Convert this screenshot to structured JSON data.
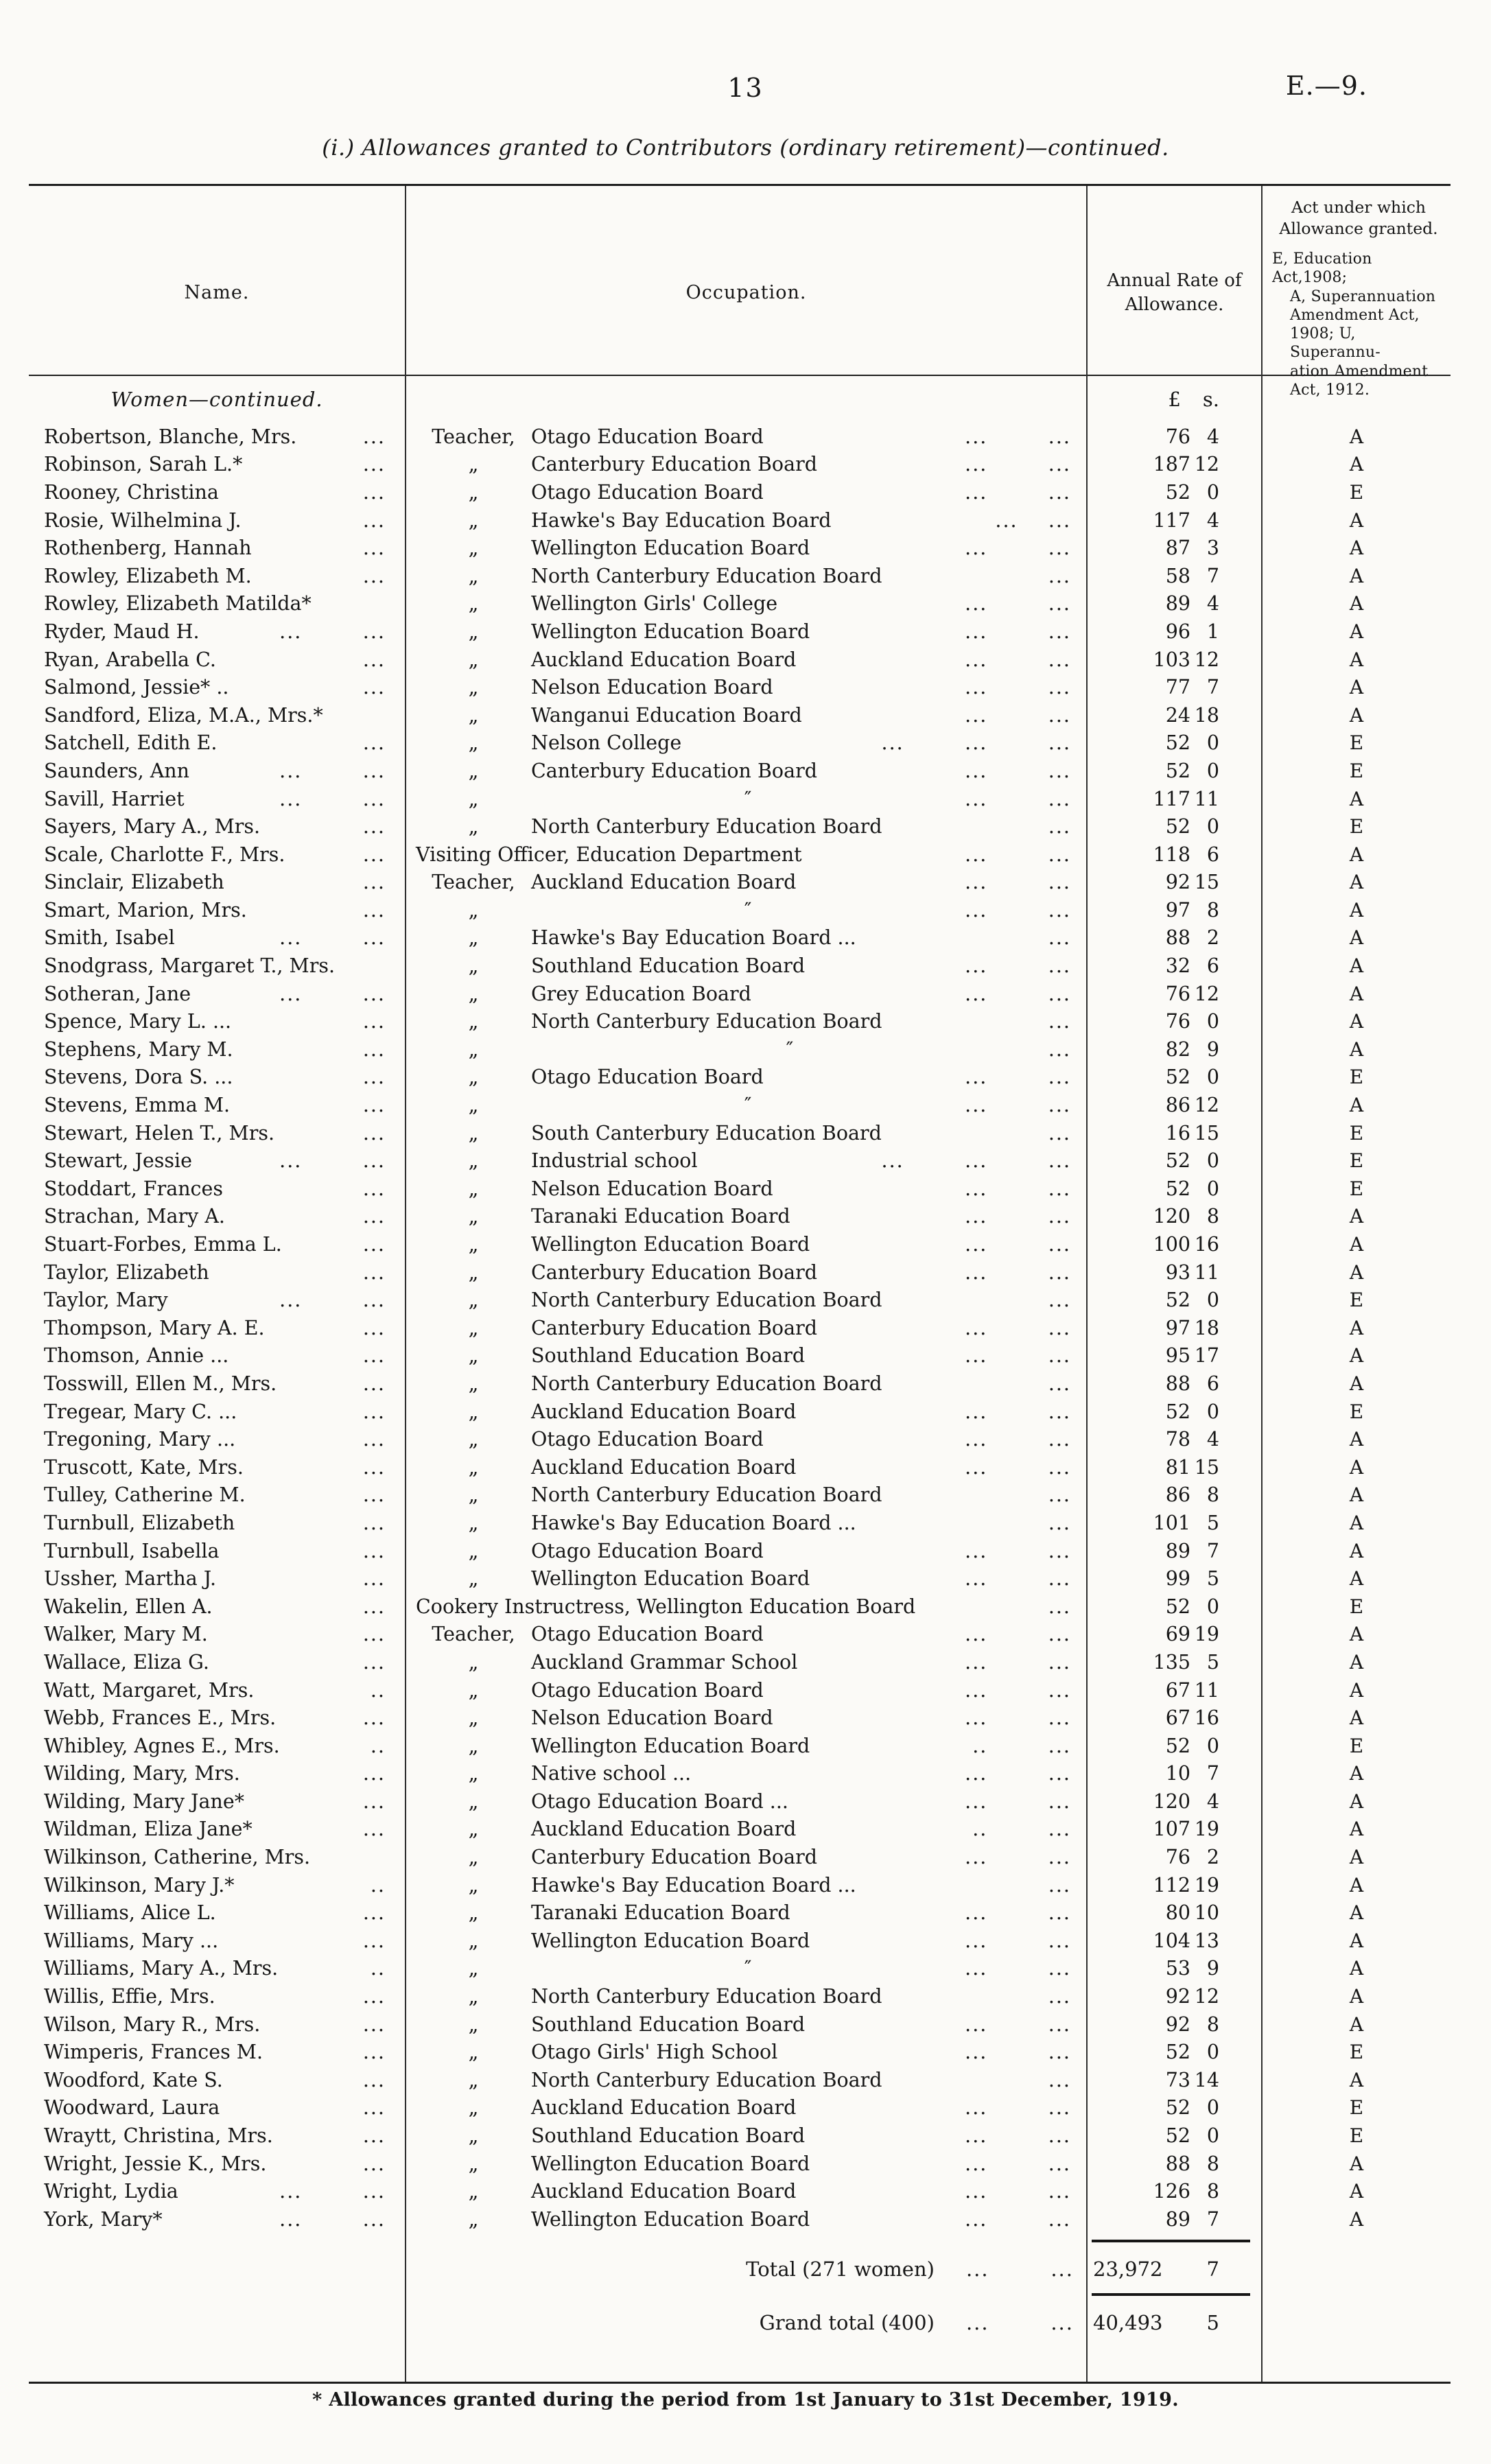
{
  "header": {
    "page_number": "13",
    "doc_ref": "E.—9.",
    "title": "(i.) Allowances granted to Contributors (ordinary retirement)—continued."
  },
  "table": {
    "col_name": "Name.",
    "col_occupation": "Occupation.",
    "col_allowance_lines": [
      "Annual Rate of",
      "Allowance."
    ],
    "col_act_lines": [
      "Act under which",
      "Allowance granted."
    ],
    "col_act_note_lines": [
      "E, Education Act,1908;",
      "A, Superannuation",
      "Amendment Act,",
      "1908; U, Superannu-",
      "ation Amendment",
      "Act, 1912."
    ],
    "section_heading": "Women—continued.",
    "currency_pounds": "£",
    "currency_shillings": "s.",
    "ditto_prefix": "„",
    "ditto_board": "″",
    "rows": [
      {
        "name": "Robertson, Blanche, Mrs.",
        "ndots": "...",
        "pre": "Teacher,",
        "occ": "Otago Education Board",
        "odots": "...        ...",
        "pounds": "76",
        "sh": "4",
        "act": "A"
      },
      {
        "name": "Robinson, Sarah L.*",
        "ndots": "...",
        "pre": "„",
        "occ": "Canterbury Education Board",
        "odots": "...        ...",
        "pounds": "187",
        "sh": "12",
        "act": "A"
      },
      {
        "name": "Rooney, Christina",
        "ndots": "...",
        "pre": "„",
        "occ": "Otago Education Board",
        "odots": "...        ...",
        "pounds": "52",
        "sh": "0",
        "act": "E"
      },
      {
        "name": "Rosie, Wilhelmina J.",
        "ndots": "...",
        "pre": "„",
        "occ": "Hawke's Bay Education Board",
        "odots": "...    ...",
        "pounds": "117",
        "sh": "4",
        "act": "A"
      },
      {
        "name": "Rothenberg, Hannah",
        "ndots": "...",
        "pre": "„",
        "occ": "Wellington Education Board",
        "odots": "...        ...",
        "pounds": "87",
        "sh": "3",
        "act": "A"
      },
      {
        "name": "Rowley, Elizabeth M.",
        "ndots": "...",
        "pre": "„",
        "occ": "North Canterbury Education Board",
        "odots": "...",
        "pounds": "58",
        "sh": "7",
        "act": "A"
      },
      {
        "name": "Rowley, Elizabeth Matilda*",
        "ndots": "",
        "pre": "„",
        "occ": "Wellington Girls' College",
        "odots": "...        ...",
        "pounds": "89",
        "sh": "4",
        "act": "A"
      },
      {
        "name": "Ryder, Maud H.",
        "ndots": "...        ...",
        "pre": "„",
        "occ": "Wellington Education Board",
        "odots": "...        ...",
        "pounds": "96",
        "sh": "1",
        "act": "A"
      },
      {
        "name": "Ryan, Arabella C.",
        "ndots": "...",
        "pre": "„",
        "occ": "Auckland Education Board",
        "odots": "...        ...",
        "pounds": "103",
        "sh": "12",
        "act": "A"
      },
      {
        "name": "Salmond, Jessie* ..",
        "ndots": "...",
        "pre": "„",
        "occ": "Nelson Education Board",
        "odots": "...        ...",
        "pounds": "77",
        "sh": "7",
        "act": "A"
      },
      {
        "name": "Sandford, Eliza, M.A., Mrs.*",
        "ndots": "",
        "pre": "„",
        "occ": "Wanganui Education Board",
        "odots": "...        ...",
        "pounds": "24",
        "sh": "18",
        "act": "A"
      },
      {
        "name": "Satchell, Edith E.",
        "ndots": "...",
        "pre": "„",
        "occ": "Nelson College",
        "odots": "...        ...        ...",
        "pounds": "52",
        "sh": "0",
        "act": "E"
      },
      {
        "name": "Saunders, Ann",
        "ndots": "...        ...",
        "pre": "„",
        "occ": "Canterbury Education Board",
        "odots": "...        ...",
        "pounds": "52",
        "sh": "0",
        "act": "E"
      },
      {
        "name": "Savill, Harriet",
        "ndots": "...        ...",
        "pre": "„",
        "occ": "″",
        "odots": "...        ...",
        "pounds": "117",
        "sh": "11",
        "act": "A"
      },
      {
        "name": "Sayers, Mary A., Mrs.",
        "ndots": "...",
        "pre": "„",
        "occ": "North Canterbury Education Board",
        "odots": "...",
        "pounds": "52",
        "sh": "0",
        "act": "E"
      },
      {
        "name": "Scale, Charlotte F., Mrs.",
        "ndots": "...",
        "pre": "",
        "occ": "Visiting Officer, Education Department",
        "odots": "...        ...",
        "pounds": "118",
        "sh": "6",
        "act": "A"
      },
      {
        "name": "Sinclair, Elizabeth",
        "ndots": "...",
        "pre": "Teacher,",
        "occ": "Auckland Education Board",
        "odots": "...        ...",
        "pounds": "92",
        "sh": "15",
        "act": "A"
      },
      {
        "name": "Smart, Marion, Mrs.",
        "ndots": "...",
        "pre": "„",
        "occ": "″",
        "odots": "...        ...",
        "pounds": "97",
        "sh": "8",
        "act": "A"
      },
      {
        "name": "Smith, Isabel",
        "ndots": "...        ...",
        "pre": "„",
        "occ": "Hawke's Bay Education Board ...",
        "odots": "...",
        "pounds": "88",
        "sh": "2",
        "act": "A"
      },
      {
        "name": "Snodgrass, Margaret T., Mrs.",
        "ndots": "",
        "pre": "„",
        "occ": "Southland Education Board",
        "odots": "...        ...",
        "pounds": "32",
        "sh": "6",
        "act": "A"
      },
      {
        "name": "Sotheran, Jane",
        "ndots": "...        ...",
        "pre": "„",
        "occ": "Grey Education Board",
        "odots": "...        ...",
        "pounds": "76",
        "sh": "12",
        "act": "A"
      },
      {
        "name": "Spence, Mary L. ...",
        "ndots": "...",
        "pre": "„",
        "occ": "North Canterbury Education Board",
        "odots": "...",
        "pounds": "76",
        "sh": "0",
        "act": "A"
      },
      {
        "name": "Stephens, Mary M.",
        "ndots": "...",
        "pre": "„",
        "occ": "″",
        "odots": "...",
        "pounds": "82",
        "sh": "9",
        "act": "A"
      },
      {
        "name": "Stevens, Dora S. ...",
        "ndots": "...",
        "pre": "„",
        "occ": "Otago Education Board",
        "odots": "...        ...",
        "pounds": "52",
        "sh": "0",
        "act": "E"
      },
      {
        "name": "Stevens, Emma M.",
        "ndots": "...",
        "pre": "„",
        "occ": "″",
        "odots": "...        ...",
        "pounds": "86",
        "sh": "12",
        "act": "A"
      },
      {
        "name": "Stewart, Helen T., Mrs.",
        "ndots": "...",
        "pre": "„",
        "occ": "South Canterbury Education Board",
        "odots": "...",
        "pounds": "16",
        "sh": "15",
        "act": "E"
      },
      {
        "name": "Stewart, Jessie",
        "ndots": "...        ...",
        "pre": "„",
        "occ": "Industrial school",
        "odots": "...        ...        ...",
        "pounds": "52",
        "sh": "0",
        "act": "E"
      },
      {
        "name": "Stoddart, Frances",
        "ndots": "...",
        "pre": "„",
        "occ": "Nelson Education Board",
        "odots": "...        ...",
        "pounds": "52",
        "sh": "0",
        "act": "E"
      },
      {
        "name": "Strachan, Mary A.",
        "ndots": "...",
        "pre": "„",
        "occ": "Taranaki Education Board",
        "odots": "...        ...",
        "pounds": "120",
        "sh": "8",
        "act": "A"
      },
      {
        "name": "Stuart-Forbes, Emma L.",
        "ndots": "...",
        "pre": "„",
        "occ": "Wellington Education Board",
        "odots": "...        ...",
        "pounds": "100",
        "sh": "16",
        "act": "A"
      },
      {
        "name": "Taylor, Elizabeth",
        "ndots": "...",
        "pre": "„",
        "occ": "Canterbury Education Board",
        "odots": "...        ...",
        "pounds": "93",
        "sh": "11",
        "act": "A"
      },
      {
        "name": "Taylor, Mary",
        "ndots": "...        ...",
        "pre": "„",
        "occ": "North Canterbury Education Board",
        "odots": "...",
        "pounds": "52",
        "sh": "0",
        "act": "E"
      },
      {
        "name": "Thompson, Mary A. E.",
        "ndots": "...",
        "pre": "„",
        "occ": "Canterbury Education Board",
        "odots": "...        ...",
        "pounds": "97",
        "sh": "18",
        "act": "A"
      },
      {
        "name": "Thomson, Annie ...",
        "ndots": "...",
        "pre": "„",
        "occ": "Southland Education Board",
        "odots": "...        ...",
        "pounds": "95",
        "sh": "17",
        "act": "A"
      },
      {
        "name": "Tosswill, Ellen M., Mrs.",
        "ndots": "...",
        "pre": "„",
        "occ": "North Canterbury Education Board",
        "odots": "...",
        "pounds": "88",
        "sh": "6",
        "act": "A"
      },
      {
        "name": "Tregear, Mary C. ...",
        "ndots": "...",
        "pre": "„",
        "occ": "Auckland Education Board",
        "odots": "...        ...",
        "pounds": "52",
        "sh": "0",
        "act": "E"
      },
      {
        "name": "Tregoning, Mary ...",
        "ndots": "...",
        "pre": "„",
        "occ": "Otago Education Board",
        "odots": "...        ...",
        "pounds": "78",
        "sh": "4",
        "act": "A"
      },
      {
        "name": "Truscott, Kate, Mrs.",
        "ndots": "...",
        "pre": "„",
        "occ": "Auckland Education Board",
        "odots": "...        ...",
        "pounds": "81",
        "sh": "15",
        "act": "A"
      },
      {
        "name": "Tulley, Catherine M.",
        "ndots": "...",
        "pre": "„",
        "occ": "North Canterbury Education Board",
        "odots": "...",
        "pounds": "86",
        "sh": "8",
        "act": "A"
      },
      {
        "name": "Turnbull, Elizabeth",
        "ndots": "...",
        "pre": "„",
        "occ": "Hawke's Bay Education Board ...",
        "odots": "...",
        "pounds": "101",
        "sh": "5",
        "act": "A"
      },
      {
        "name": "Turnbull, Isabella",
        "ndots": "...",
        "pre": "„",
        "occ": "Otago Education Board",
        "odots": "...        ...",
        "pounds": "89",
        "sh": "7",
        "act": "A"
      },
      {
        "name": "Ussher, Martha J.",
        "ndots": "...",
        "pre": "„",
        "occ": "Wellington Education Board",
        "odots": "...        ...",
        "pounds": "99",
        "sh": "5",
        "act": "A"
      },
      {
        "name": "Wakelin, Ellen A.",
        "ndots": "...",
        "pre": "",
        "occ": "Cookery Instructress, Wellington Education Board",
        "odots": "...",
        "pounds": "52",
        "sh": "0",
        "act": "E"
      },
      {
        "name": "Walker, Mary M.",
        "ndots": "...",
        "pre": "Teacher,",
        "occ": "Otago Education Board",
        "odots": "...        ...",
        "pounds": "69",
        "sh": "19",
        "act": "A"
      },
      {
        "name": "Wallace, Eliza G.",
        "ndots": "...",
        "pre": "„",
        "occ": "Auckland Grammar School",
        "odots": "...        ...",
        "pounds": "135",
        "sh": "5",
        "act": "A"
      },
      {
        "name": "Watt, Margaret, Mrs.",
        "ndots": "..",
        "pre": "„",
        "occ": "Otago Education Board",
        "odots": "...        ...",
        "pounds": "67",
        "sh": "11",
        "act": "A"
      },
      {
        "name": "Webb, Frances E., Mrs.",
        "ndots": "...",
        "pre": "„",
        "occ": "Nelson Education Board",
        "odots": "...        ...",
        "pounds": "67",
        "sh": "16",
        "act": "A"
      },
      {
        "name": "Whibley, Agnes E., Mrs.",
        "ndots": "..",
        "pre": "„",
        "occ": "Wellington Education Board",
        "odots": "..        ...",
        "pounds": "52",
        "sh": "0",
        "act": "E"
      },
      {
        "name": "Wilding, Mary, Mrs.",
        "ndots": "...",
        "pre": "„",
        "occ": "Native school ...",
        "odots": "...        ...",
        "pounds": "10",
        "sh": "7",
        "act": "A"
      },
      {
        "name": "Wilding, Mary Jane*",
        "ndots": "...",
        "pre": "„",
        "occ": "Otago Education Board ...",
        "odots": "...        ...",
        "pounds": "120",
        "sh": "4",
        "act": "A"
      },
      {
        "name": "Wildman, Eliza Jane*",
        "ndots": "...",
        "pre": "„",
        "occ": "Auckland Education Board",
        "odots": "..        ...",
        "pounds": "107",
        "sh": "19",
        "act": "A"
      },
      {
        "name": "Wilkinson, Catherine, Mrs.",
        "ndots": "",
        "pre": "„",
        "occ": "Canterbury Education Board",
        "odots": "...        ...",
        "pounds": "76",
        "sh": "2",
        "act": "A"
      },
      {
        "name": "Wilkinson, Mary J.*",
        "ndots": "..",
        "pre": "„",
        "occ": "Hawke's Bay Education Board ...",
        "odots": "...",
        "pounds": "112",
        "sh": "19",
        "act": "A"
      },
      {
        "name": "Williams, Alice L.",
        "ndots": "...",
        "pre": "„",
        "occ": "Taranaki Education Board",
        "odots": "...        ...",
        "pounds": "80",
        "sh": "10",
        "act": "A"
      },
      {
        "name": "Williams, Mary ...",
        "ndots": "...",
        "pre": "„",
        "occ": "Wellington Education Board",
        "odots": "...        ...",
        "pounds": "104",
        "sh": "13",
        "act": "A"
      },
      {
        "name": "Williams, Mary A., Mrs.",
        "ndots": "..",
        "pre": "„",
        "occ": "″",
        "odots": "...        ...",
        "pounds": "53",
        "sh": "9",
        "act": "A"
      },
      {
        "name": "Willis, Effie, Mrs.",
        "ndots": "...",
        "pre": "„",
        "occ": "North Canterbury Education Board",
        "odots": "...",
        "pounds": "92",
        "sh": "12",
        "act": "A"
      },
      {
        "name": "Wilson, Mary R., Mrs.",
        "ndots": "...",
        "pre": "„",
        "occ": "Southland Education Board",
        "odots": "...        ...",
        "pounds": "92",
        "sh": "8",
        "act": "A"
      },
      {
        "name": "Wimperis, Frances M.",
        "ndots": "...",
        "pre": "„",
        "occ": "Otago Girls' High School",
        "odots": "...        ...",
        "pounds": "52",
        "sh": "0",
        "act": "E"
      },
      {
        "name": "Woodford, Kate S.",
        "ndots": "...",
        "pre": "„",
        "occ": "North Canterbury Education Board",
        "odots": "...",
        "pounds": "73",
        "sh": "14",
        "act": "A"
      },
      {
        "name": "Woodward, Laura",
        "ndots": "...",
        "pre": "„",
        "occ": "Auckland Education Board",
        "odots": "...        ...",
        "pounds": "52",
        "sh": "0",
        "act": "E"
      },
      {
        "name": "Wraytt, Christina, Mrs.",
        "ndots": "...",
        "pre": "„",
        "occ": "Southland Education Board",
        "odots": "...        ...",
        "pounds": "52",
        "sh": "0",
        "act": "E"
      },
      {
        "name": "Wright, Jessie K., Mrs.",
        "ndots": "...",
        "pre": "„",
        "occ": "Wellington Education Board",
        "odots": "...        ...",
        "pounds": "88",
        "sh": "8",
        "act": "A"
      },
      {
        "name": "Wright, Lydia",
        "ndots": "...        ...",
        "pre": "„",
        "occ": "Auckland Education Board",
        "odots": "...        ...",
        "pounds": "126",
        "sh": "8",
        "act": "A"
      },
      {
        "name": "York, Mary*",
        "ndots": "...        ...",
        "pre": "„",
        "occ": "Wellington Education Board",
        "odots": "...        ...",
        "pounds": "89",
        "sh": "7",
        "act": "A"
      }
    ],
    "totals": [
      {
        "label": "Total (271 women)",
        "dots": "...        ...",
        "pounds": "23,972",
        "sh": "7"
      },
      {
        "label": "Grand total (400)",
        "dots": "...        ...",
        "pounds": "40,493",
        "sh": "5"
      }
    ]
  },
  "footnote": "* Allowances granted during the period from 1st January to 31st December, 1919."
}
